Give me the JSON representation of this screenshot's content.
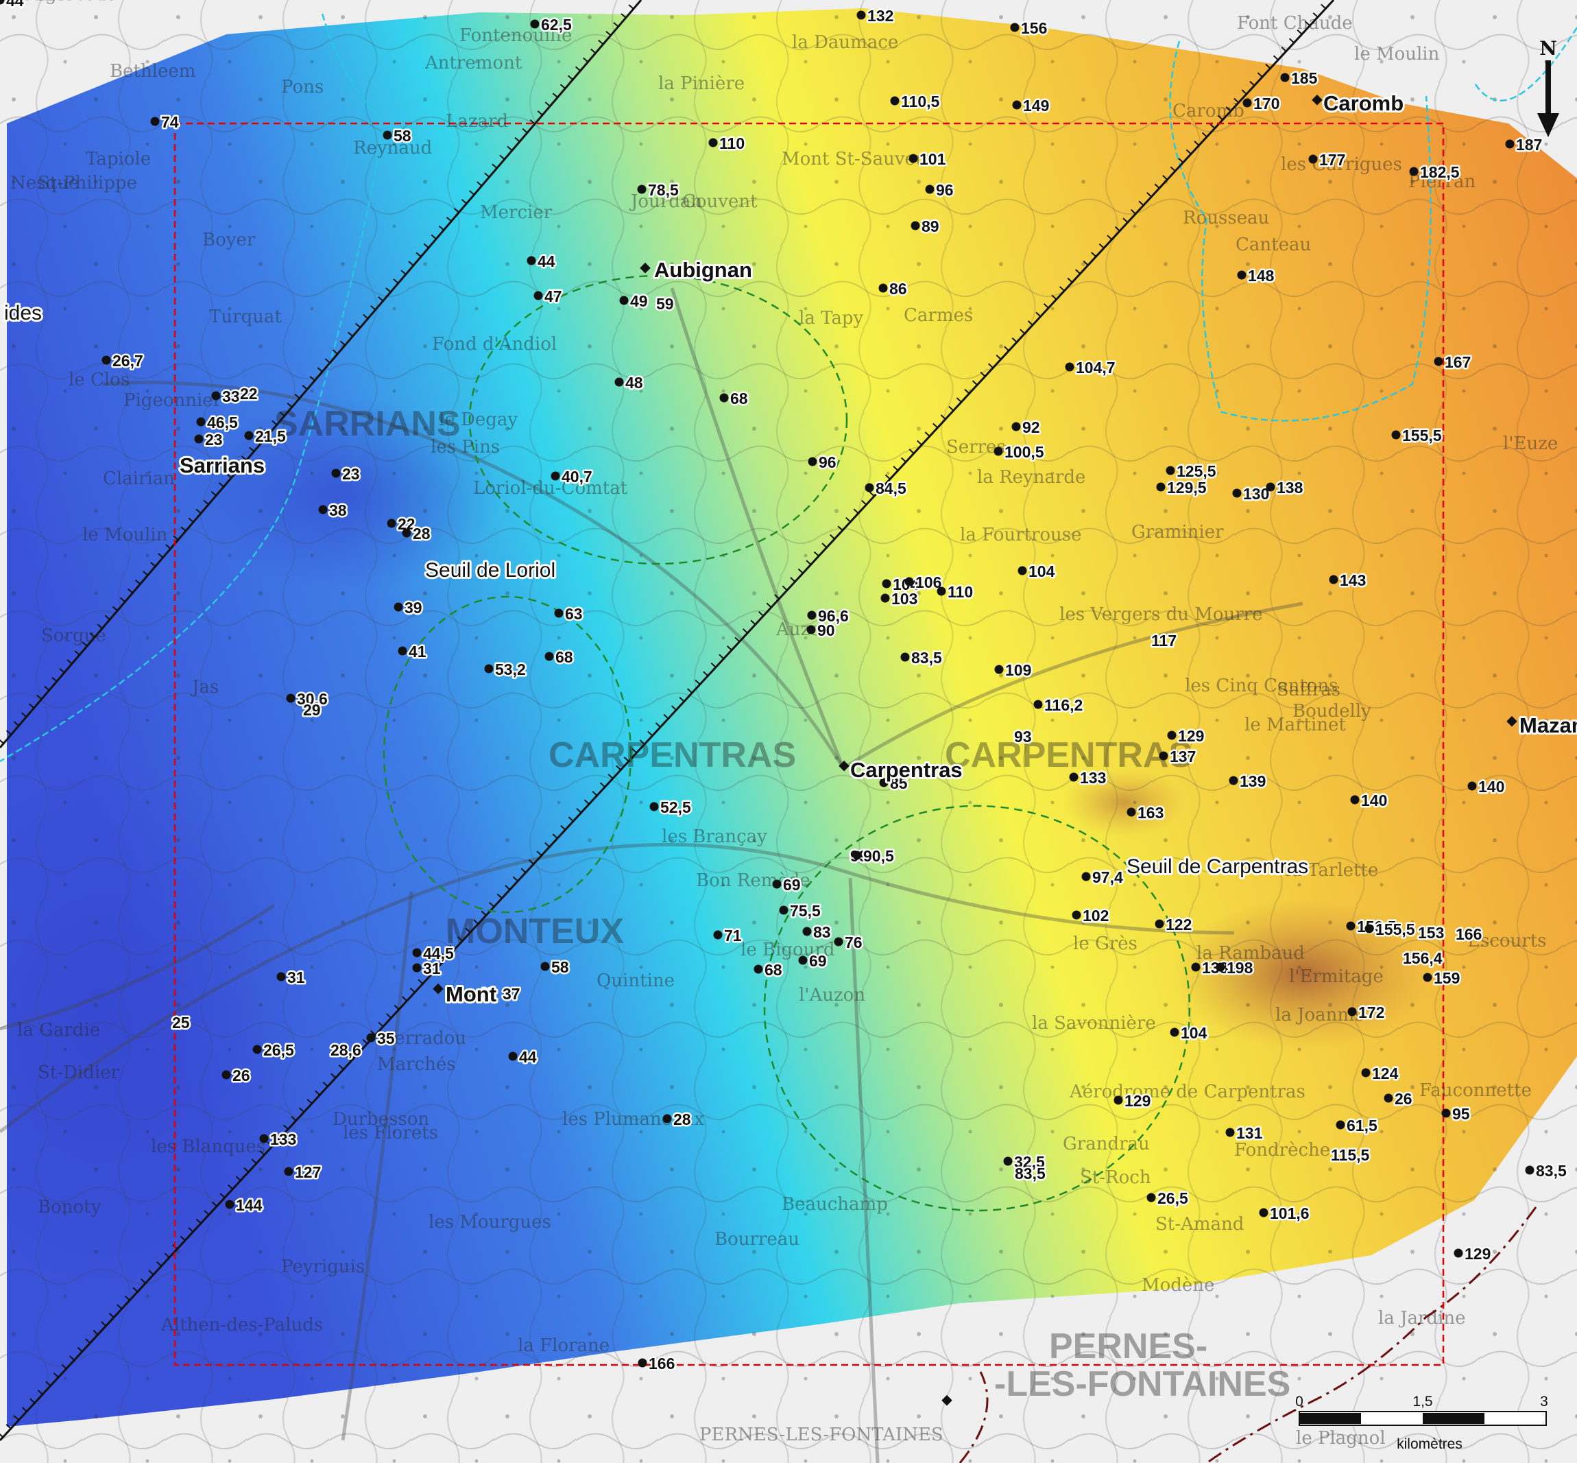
{
  "colors": {
    "low": "#3c5ee0",
    "mid_low": "#2fd6ee",
    "mid": "#f4f04a",
    "high": "#f0a336",
    "peak": "#b86a3a",
    "study_area_border": "#e00000",
    "threshold_circle": "#1f8a2a",
    "boundary": "#6a1010",
    "river": "#29c8e0"
  },
  "towns": [
    {
      "name": "Aubignan"
    },
    {
      "name": "Sarrians"
    },
    {
      "name": "Carpentras"
    },
    {
      "name": "Caromb"
    },
    {
      "name": "Mont"
    },
    {
      "name": "Mazan"
    }
  ],
  "edge_labels": {
    "left_fragment": "ides"
  },
  "annotations": [
    {
      "text": "Seuil de Loriol"
    },
    {
      "text": "Seuil de Carpentras"
    }
  ],
  "points": [
    {
      "v": "62,5"
    },
    {
      "v": "132"
    },
    {
      "v": "156"
    },
    {
      "v": "185"
    },
    {
      "v": "170"
    },
    {
      "v": "74"
    },
    {
      "v": "58"
    },
    {
      "v": "110,5"
    },
    {
      "v": "149"
    },
    {
      "v": "110"
    },
    {
      "v": "101"
    },
    {
      "v": "177"
    },
    {
      "v": "182,5"
    },
    {
      "v": "187"
    },
    {
      "v": "78,5"
    },
    {
      "v": "96"
    },
    {
      "v": "89"
    },
    {
      "v": "44"
    },
    {
      "v": "47"
    },
    {
      "v": "49"
    },
    {
      "v": "59"
    },
    {
      "v": "86"
    },
    {
      "v": "148"
    },
    {
      "v": "26,7"
    },
    {
      "v": "33"
    },
    {
      "v": "22"
    },
    {
      "v": "48"
    },
    {
      "v": "68"
    },
    {
      "v": "104,7"
    },
    {
      "v": "167"
    },
    {
      "v": "46,5"
    },
    {
      "v": "23"
    },
    {
      "v": "21,5"
    },
    {
      "v": "92"
    },
    {
      "v": "155,5"
    },
    {
      "v": "100,5"
    },
    {
      "v": "23"
    },
    {
      "v": "40,7"
    },
    {
      "v": "96"
    },
    {
      "v": "125,5"
    },
    {
      "v": "129,5"
    },
    {
      "v": "130"
    },
    {
      "v": "138"
    },
    {
      "v": "84,5"
    },
    {
      "v": "38"
    },
    {
      "v": "22"
    },
    {
      "v": "28"
    },
    {
      "v": "104"
    },
    {
      "v": "104"
    },
    {
      "v": "106"
    },
    {
      "v": "110"
    },
    {
      "v": "103"
    },
    {
      "v": "143"
    },
    {
      "v": "39"
    },
    {
      "v": "63"
    },
    {
      "v": "96,6"
    },
    {
      "v": "90"
    },
    {
      "v": "117"
    },
    {
      "v": "41"
    },
    {
      "v": "68"
    },
    {
      "v": "53,2"
    },
    {
      "v": "83,5"
    },
    {
      "v": "109"
    },
    {
      "v": "116,2"
    },
    {
      "v": "30,6"
    },
    {
      "v": "29"
    },
    {
      "v": "93"
    },
    {
      "v": "129"
    },
    {
      "v": "137"
    },
    {
      "v": "85"
    },
    {
      "v": "133"
    },
    {
      "v": "139"
    },
    {
      "v": "140"
    },
    {
      "v": "140"
    },
    {
      "v": "52,5"
    },
    {
      "v": "163"
    },
    {
      "v": "99"
    },
    {
      "v": "90,5"
    },
    {
      "v": "97,4"
    },
    {
      "v": "69"
    },
    {
      "v": "75,5"
    },
    {
      "v": "102"
    },
    {
      "v": "122"
    },
    {
      "v": "150,5"
    },
    {
      "v": "155,5"
    },
    {
      "v": "153"
    },
    {
      "v": "166"
    },
    {
      "v": "71"
    },
    {
      "v": "83"
    },
    {
      "v": "76"
    },
    {
      "v": "44,5"
    },
    {
      "v": "31"
    },
    {
      "v": "58"
    },
    {
      "v": "69"
    },
    {
      "v": "68"
    },
    {
      "v": "138"
    },
    {
      "v": "198"
    },
    {
      "v": "156,4"
    },
    {
      "v": "159"
    },
    {
      "v": "31"
    },
    {
      "v": "43"
    },
    {
      "v": "37"
    },
    {
      "v": "172"
    },
    {
      "v": "25"
    },
    {
      "v": "35"
    },
    {
      "v": "104"
    },
    {
      "v": "26,5"
    },
    {
      "v": "26"
    },
    {
      "v": "28,6"
    },
    {
      "v": "44"
    },
    {
      "v": "124"
    },
    {
      "v": "26"
    },
    {
      "v": "129"
    },
    {
      "v": "95"
    },
    {
      "v": "133"
    },
    {
      "v": "28"
    },
    {
      "v": "61,5"
    },
    {
      "v": "131"
    },
    {
      "v": "115,5"
    },
    {
      "v": "127"
    },
    {
      "v": "32,5"
    },
    {
      "v": "83,5"
    },
    {
      "v": "83,5"
    },
    {
      "v": "144"
    },
    {
      "v": "26,5"
    },
    {
      "v": "101,6"
    },
    {
      "v": "129"
    },
    {
      "v": "166"
    },
    {
      "v": "44"
    }
  ],
  "scale_bar": {
    "ticks": [
      "0",
      "1,5",
      "3"
    ],
    "unit": "kilomètres"
  },
  "north_arrow": {
    "label": "N"
  },
  "basemap_labels": [
    "Bethleem",
    "Fontenouille",
    "Antremont",
    "Pons",
    "Tapiole",
    "Reynaud",
    "Lazard",
    "Mercier",
    "Boyer",
    "Turquat",
    "le Clos",
    "Pigeonnier",
    "Clairian",
    "le Moulin",
    "le Degay",
    "les Pins",
    "Jourdan",
    "Couvent",
    "la Pinière",
    "la Daumace",
    "la Tapy",
    "Carmes",
    "Fond d'Andiol",
    "Serres",
    "la Reynarde",
    "la Fourtrouse",
    "les Vergers du Mourre",
    "Graminier",
    "les Cinq Cantons",
    "Saffras",
    "Boudelly",
    "le Martinet",
    "les Brançay",
    "Bon Remède",
    "le Bigourd",
    "l'Auzon",
    "Quintine",
    "Terradou",
    "Marchés",
    "Durbesson",
    "les Plumaneaux",
    "les Florets",
    "les Blanques",
    "les Mourgues",
    "Peyriguis",
    "la Florane",
    "Bourreau",
    "Beauchamp",
    "la Savonnière",
    "Grandrau",
    "le Grès",
    "la Rambaud",
    "l'Ermitage",
    "la Joannis",
    "la Tarlette",
    "Escourts",
    "Fauconnette",
    "Rousseau",
    "Canteau",
    "les Garrigues",
    "Pierran",
    "Font Chaude",
    "le Moulin",
    "l'Euze",
    "St-Amand",
    "Modène",
    "la Jardine",
    "le Plagnol",
    "Fondrèche",
    "St-Roch",
    "Bonoty",
    "St-Didier",
    "la Gardie",
    "St-Philippe",
    "Nesque",
    "Sorgue",
    "Jas",
    "Auzon",
    "St-Louis",
    "Gens",
    "Orange",
    "le Rouvillous",
    "Lovade",
    "Carré Blanc"
  ],
  "basemap_big_labels": [
    "SARRIANS",
    "Loriol-du-Comtat",
    "CARPENTRAS",
    "CARPENTRAS",
    "MONTEUX",
    "PERNES-LES-FONTAINES",
    "PERNES-",
    "-LES-FONTAINES",
    "Mont St-Sauveur",
    "Althen-des-Paluds",
    "Aérodrome de Carpentras",
    "Caromb"
  ]
}
